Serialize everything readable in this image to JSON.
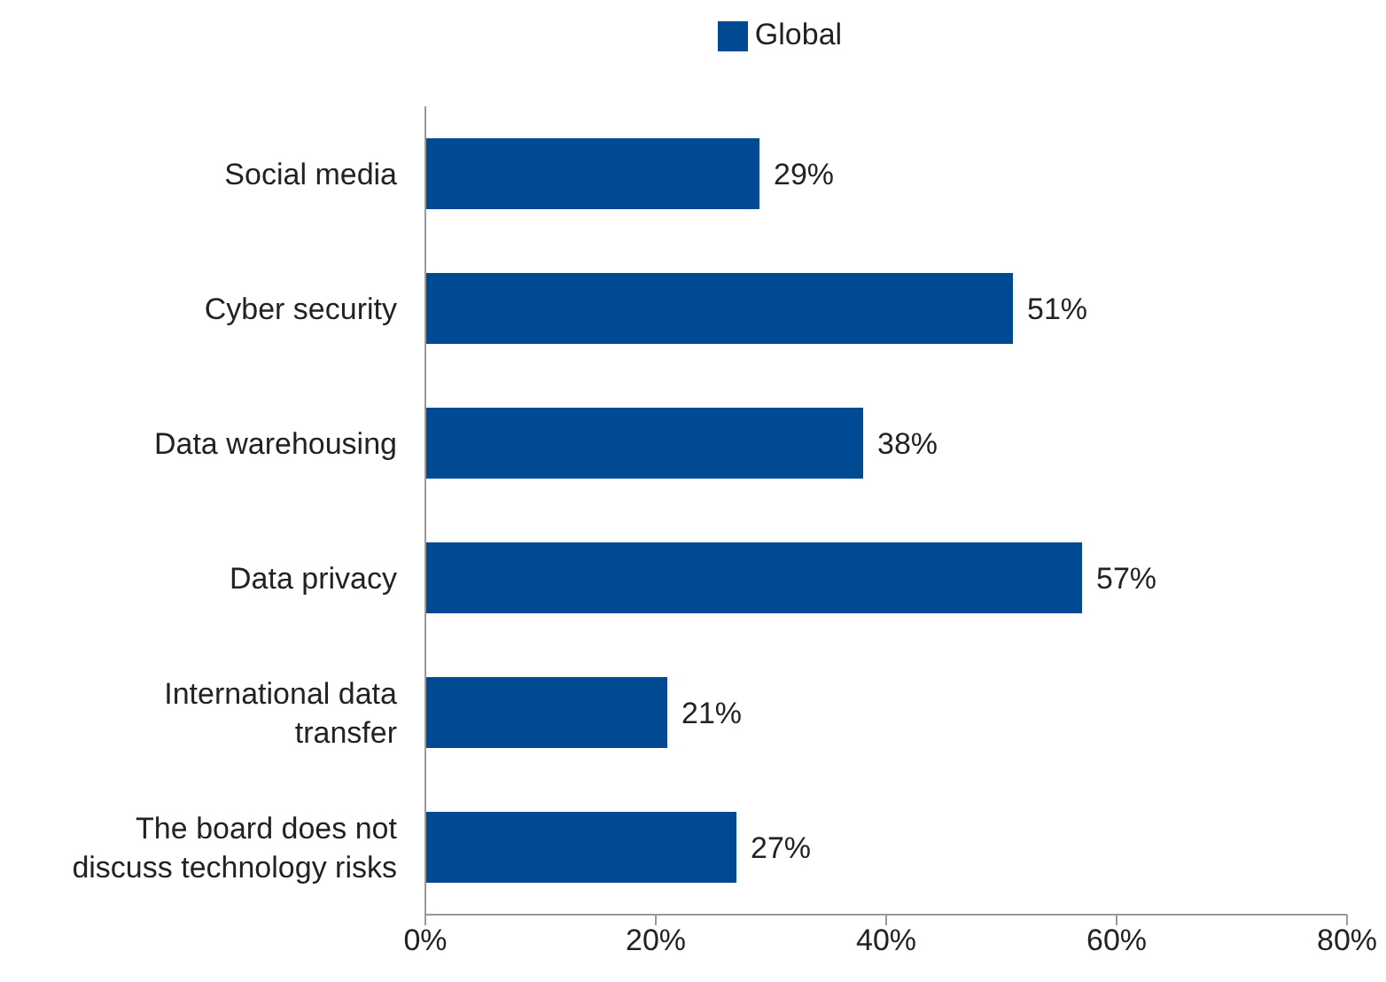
{
  "chart_data": {
    "type": "bar",
    "orientation": "horizontal",
    "categories": [
      "Social media",
      "Cyber security",
      "Data warehousing",
      "Data privacy",
      "International data transfer",
      "The board does not discuss technology risks"
    ],
    "series": [
      {
        "name": "Global",
        "color": "#004a94",
        "values": [
          29,
          51,
          38,
          57,
          21,
          27
        ],
        "value_labels": [
          "29%",
          "51%",
          "38%",
          "57%",
          "21%",
          "27%"
        ]
      }
    ],
    "xlim": [
      0,
      80
    ],
    "xticks": [
      {
        "value": 0,
        "label": "0%"
      },
      {
        "value": 20,
        "label": "20%"
      },
      {
        "value": 40,
        "label": "40%"
      },
      {
        "value": 60,
        "label": "60%"
      },
      {
        "value": 80,
        "label": "80%"
      }
    ],
    "legend": "top",
    "grid": false
  }
}
